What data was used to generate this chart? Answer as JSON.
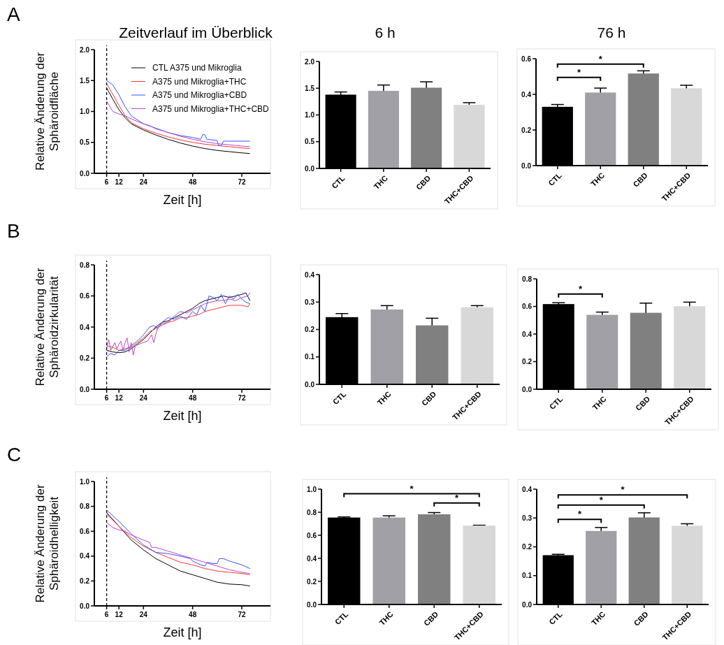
{
  "chart_data": [
    {
      "type": "line",
      "title": "Zeitverlauf im Überblick",
      "ylabel": "Relative Änderung der\nSphäroidfläche",
      "xlabel": "Zeit [h]",
      "annotations": [
        "A"
      ],
      "xlim": [
        0,
        86
      ],
      "xticks": [
        6,
        12,
        24,
        48,
        72
      ],
      "ylim": [
        0,
        2
      ],
      "yticks": [
        {
          "value": 0,
          "label": "0.0"
        },
        {
          "value": 0.5,
          "label": "0.5"
        },
        {
          "value": 1,
          "label": "1.0"
        },
        {
          "value": 1.5,
          "label": "1.5"
        },
        {
          "value": 2,
          "label": "2.0"
        }
      ],
      "ref_lines": [
        {
          "axis": "x",
          "value": 6,
          "line_style": "dashed",
          "color": "#000000"
        }
      ],
      "legend": "top right",
      "series": [
        {
          "name": "CTL A375 und Mikroglia",
          "color": "#000000",
          "x": [
            6,
            9,
            12,
            15,
            18,
            24,
            30,
            36,
            42,
            48,
            54,
            60,
            66,
            72,
            76
          ],
          "values": [
            1.38,
            1.2,
            1.03,
            0.9,
            0.8,
            0.7,
            0.62,
            0.55,
            0.49,
            0.44,
            0.4,
            0.37,
            0.35,
            0.33,
            0.32
          ]
        },
        {
          "name": "A375 und Mikroglia+THC",
          "color": "#ff3333",
          "x": [
            6,
            9,
            12,
            15,
            18,
            24,
            30,
            36,
            42,
            48,
            54,
            60,
            66,
            72,
            76
          ],
          "values": [
            1.45,
            1.28,
            1.1,
            0.93,
            0.82,
            0.72,
            0.65,
            0.59,
            0.54,
            0.5,
            0.47,
            0.45,
            0.43,
            0.41,
            0.4
          ]
        },
        {
          "name": "A375 und Mikroglia+CBD",
          "color": "#3355ff",
          "x": [
            6,
            9,
            12,
            15,
            18,
            24,
            30,
            36,
            42,
            48,
            52,
            53,
            54,
            55,
            60,
            60.6,
            62,
            63,
            66,
            72,
            76
          ],
          "values": [
            1.5,
            1.43,
            1.27,
            1.08,
            0.93,
            0.8,
            0.73,
            0.66,
            0.61,
            0.58,
            0.55,
            0.63,
            0.62,
            0.55,
            0.53,
            0.45,
            0.45,
            0.52,
            0.52,
            0.52,
            0.52
          ]
        },
        {
          "name": "A375 und Mikroglia+THC+CBD",
          "color": "#bb44cc",
          "x": [
            6,
            9,
            12,
            15,
            18,
            24,
            27,
            30,
            36,
            42,
            48,
            54,
            60,
            66,
            72,
            76
          ],
          "values": [
            1.17,
            1.0,
            0.96,
            0.93,
            0.88,
            0.8,
            0.77,
            0.72,
            0.66,
            0.6,
            0.55,
            0.51,
            0.48,
            0.46,
            0.44,
            0.43
          ]
        }
      ]
    },
    {
      "type": "bar",
      "title": "6 h",
      "categories": [
        "CTL",
        "THC",
        "CBD",
        "THC+CBD"
      ],
      "values": [
        1.38,
        1.45,
        1.51,
        1.19
      ],
      "errors": [
        0.05,
        0.11,
        0.11,
        0.04
      ],
      "colors": [
        "#000000",
        "#a0a0a6",
        "#808080",
        "#d8d8d8"
      ],
      "ylim": [
        0,
        2
      ],
      "yticks": [
        {
          "value": 0,
          "label": "0.0"
        },
        {
          "value": 0.5,
          "label": "0.5"
        },
        {
          "value": 1,
          "label": "1.0"
        },
        {
          "value": 1.5,
          "label": "1.5"
        },
        {
          "value": 2,
          "label": "2.0"
        }
      ]
    },
    {
      "type": "bar",
      "title": "76 h",
      "categories": [
        "CTL",
        "THC",
        "CBD",
        "THC+CBD"
      ],
      "values": [
        0.33,
        0.41,
        0.517,
        0.434
      ],
      "errors": [
        0.013,
        0.025,
        0.015,
        0.017
      ],
      "colors": [
        "#000000",
        "#a0a0a6",
        "#808080",
        "#d8d8d8"
      ],
      "ylim": [
        0,
        0.6
      ],
      "yticks": [
        {
          "value": 0,
          "label": "0.0"
        },
        {
          "value": 0.2,
          "label": "0.2"
        },
        {
          "value": 0.4,
          "label": "0.4"
        },
        {
          "value": 0.6,
          "label": "0.6"
        }
      ],
      "annotations": [
        "*",
        "*"
      ]
    },
    {
      "type": "line",
      "ylabel": "Relative Änderung der\nSphäroidzirkularität",
      "xlabel": "Zeit [h]",
      "annotations": [
        "B"
      ],
      "xlim": [
        0,
        86
      ],
      "xticks": [
        6,
        12,
        24,
        48,
        72
      ],
      "ylim": [
        0,
        0.8
      ],
      "yticks": [
        {
          "value": 0,
          "label": "0.0"
        },
        {
          "value": 0.2,
          "label": "0.2"
        },
        {
          "value": 0.4,
          "label": "0.4"
        },
        {
          "value": 0.6,
          "label": "0.6"
        },
        {
          "value": 0.8,
          "label": "0.8"
        }
      ],
      "ref_lines": [
        {
          "axis": "x",
          "value": 6,
          "line_style": "dashed",
          "color": "#000000"
        }
      ],
      "series": [
        {
          "color": "#000000",
          "x": [
            6,
            9,
            12,
            15,
            18,
            21,
            24,
            27,
            30,
            33,
            36,
            39,
            42,
            45,
            48,
            51,
            54,
            57,
            60,
            63,
            66,
            69,
            72,
            74,
            76
          ],
          "values": [
            0.25,
            0.24,
            0.235,
            0.24,
            0.26,
            0.29,
            0.32,
            0.36,
            0.4,
            0.43,
            0.44,
            0.46,
            0.48,
            0.5,
            0.52,
            0.55,
            0.57,
            0.58,
            0.59,
            0.6,
            0.59,
            0.6,
            0.61,
            0.62,
            0.57
          ]
        },
        {
          "color": "#ff3333",
          "x": [
            6,
            9,
            12,
            15,
            18,
            21,
            24,
            27,
            30,
            33,
            36,
            39,
            42,
            45,
            48,
            51,
            54,
            57,
            60,
            63,
            66,
            69,
            72,
            75,
            76
          ],
          "values": [
            0.28,
            0.27,
            0.25,
            0.26,
            0.27,
            0.3,
            0.33,
            0.37,
            0.39,
            0.42,
            0.43,
            0.44,
            0.46,
            0.46,
            0.47,
            0.48,
            0.5,
            0.51,
            0.52,
            0.53,
            0.54,
            0.54,
            0.54,
            0.53,
            0.55
          ]
        },
        {
          "color": "#3355ff",
          "x": [
            6,
            8,
            10,
            12,
            15,
            18,
            21,
            24,
            27,
            29,
            31,
            33,
            36,
            39,
            42,
            45,
            48,
            50,
            52,
            54,
            56,
            58,
            60,
            62,
            64,
            66,
            68,
            70,
            72,
            74,
            76
          ],
          "values": [
            0.21,
            0.23,
            0.22,
            0.25,
            0.25,
            0.28,
            0.31,
            0.35,
            0.4,
            0.41,
            0.39,
            0.43,
            0.46,
            0.45,
            0.47,
            0.45,
            0.5,
            0.48,
            0.54,
            0.5,
            0.6,
            0.59,
            0.57,
            0.61,
            0.55,
            0.6,
            0.58,
            0.61,
            0.58,
            0.56,
            0.55
          ]
        },
        {
          "color": "#bb44cc",
          "x": [
            6,
            7,
            8,
            10,
            11,
            12,
            13,
            14,
            15,
            16,
            17,
            18,
            19,
            20,
            22,
            24,
            26,
            28,
            29,
            31,
            33,
            36,
            39,
            42,
            45,
            48,
            51,
            54,
            57,
            60,
            63,
            66,
            69,
            72,
            75,
            76
          ],
          "values": [
            0.26,
            0.32,
            0.25,
            0.3,
            0.26,
            0.29,
            0.31,
            0.25,
            0.3,
            0.33,
            0.24,
            0.3,
            0.22,
            0.28,
            0.29,
            0.3,
            0.31,
            0.35,
            0.3,
            0.4,
            0.41,
            0.43,
            0.47,
            0.5,
            0.49,
            0.51,
            0.53,
            0.55,
            0.56,
            0.57,
            0.57,
            0.58,
            0.57,
            0.59,
            0.6,
            0.62
          ]
        }
      ]
    },
    {
      "type": "bar",
      "categories": [
        "CTL",
        "THC",
        "CBD",
        "THC+CBD"
      ],
      "values": [
        0.245,
        0.273,
        0.215,
        0.281
      ],
      "errors": [
        0.013,
        0.014,
        0.026,
        0.006
      ],
      "colors": [
        "#000000",
        "#a0a0a6",
        "#808080",
        "#d8d8d8"
      ],
      "ylim": [
        0,
        0.4
      ],
      "yticks": [
        {
          "value": 0,
          "label": "0.0"
        },
        {
          "value": 0.1,
          "label": "0.1"
        },
        {
          "value": 0.2,
          "label": "0.2"
        },
        {
          "value": 0.3,
          "label": "0.3"
        },
        {
          "value": 0.4,
          "label": "0.4"
        }
      ]
    },
    {
      "type": "bar",
      "categories": [
        "CTL",
        "THC",
        "CBD",
        "THC+CBD"
      ],
      "values": [
        0.617,
        0.539,
        0.554,
        0.601
      ],
      "errors": [
        0.01,
        0.02,
        0.07,
        0.03
      ],
      "colors": [
        "#000000",
        "#a0a0a6",
        "#808080",
        "#d8d8d8"
      ],
      "ylim": [
        0,
        0.8
      ],
      "yticks": [
        {
          "value": 0,
          "label": "0.0"
        },
        {
          "value": 0.2,
          "label": "0.2"
        },
        {
          "value": 0.4,
          "label": "0.4"
        },
        {
          "value": 0.6,
          "label": "0.6"
        },
        {
          "value": 0.8,
          "label": "0.8"
        }
      ],
      "annotations": [
        "*"
      ]
    },
    {
      "type": "line",
      "ylabel": "Relative Änderung der\nSphäroidhelligkeit",
      "xlabel": "Zeit [h]",
      "annotations": [
        "C"
      ],
      "xlim": [
        0,
        86
      ],
      "xticks": [
        6,
        12,
        24,
        48,
        72
      ],
      "ylim": [
        0,
        1
      ],
      "yticks": [
        {
          "value": 0,
          "label": "0.0"
        },
        {
          "value": 0.2,
          "label": "0.2"
        },
        {
          "value": 0.4,
          "label": "0.4"
        },
        {
          "value": 0.6,
          "label": "0.6"
        },
        {
          "value": 0.8,
          "label": "0.8"
        },
        {
          "value": 1,
          "label": "1.0"
        }
      ],
      "ref_lines": [
        {
          "axis": "x",
          "value": 6,
          "line_style": "dashed",
          "color": "#000000"
        }
      ],
      "series": [
        {
          "color": "#000000",
          "x": [
            6,
            12,
            18,
            24,
            30,
            36,
            42,
            48,
            54,
            60,
            66,
            72,
            76
          ],
          "values": [
            0.75,
            0.64,
            0.53,
            0.45,
            0.38,
            0.33,
            0.28,
            0.25,
            0.22,
            0.19,
            0.175,
            0.17,
            0.16
          ]
        },
        {
          "color": "#ff3333",
          "x": [
            6,
            12,
            18,
            24,
            30,
            36,
            42,
            48,
            54,
            60,
            66,
            72,
            76
          ],
          "values": [
            0.74,
            0.64,
            0.55,
            0.48,
            0.43,
            0.39,
            0.35,
            0.33,
            0.3,
            0.28,
            0.27,
            0.26,
            0.25
          ]
        },
        {
          "color": "#3355ff",
          "x": [
            6,
            12,
            18,
            24,
            30,
            36,
            42,
            47,
            48,
            52,
            54,
            55,
            58,
            60,
            61,
            63,
            66,
            72,
            76
          ],
          "values": [
            0.77,
            0.68,
            0.58,
            0.49,
            0.43,
            0.42,
            0.4,
            0.38,
            0.36,
            0.33,
            0.32,
            0.35,
            0.34,
            0.34,
            0.38,
            0.38,
            0.36,
            0.33,
            0.3
          ]
        },
        {
          "color": "#bb44cc",
          "x": [
            6,
            9,
            12,
            15,
            18,
            21,
            24,
            27,
            28,
            30,
            36,
            42,
            48,
            54,
            60,
            66,
            72,
            76
          ],
          "values": [
            0.67,
            0.63,
            0.61,
            0.6,
            0.57,
            0.55,
            0.53,
            0.51,
            0.47,
            0.47,
            0.44,
            0.41,
            0.38,
            0.35,
            0.32,
            0.29,
            0.27,
            0.26
          ]
        }
      ]
    },
    {
      "type": "bar",
      "categories": [
        "CTL",
        "THC",
        "CBD",
        "THC+CBD"
      ],
      "values": [
        0.754,
        0.754,
        0.782,
        0.684
      ],
      "errors": [
        0.005,
        0.015,
        0.015,
        0.003
      ],
      "colors": [
        "#000000",
        "#a0a0a6",
        "#808080",
        "#d8d8d8"
      ],
      "ylim": [
        0,
        1
      ],
      "yticks": [
        {
          "value": 0,
          "label": "0.0"
        },
        {
          "value": 0.2,
          "label": "0.2"
        },
        {
          "value": 0.4,
          "label": "0.4"
        },
        {
          "value": 0.6,
          "label": "0.6"
        },
        {
          "value": 0.8,
          "label": "0.8"
        },
        {
          "value": 1,
          "label": "1.0"
        }
      ],
      "annotations": [
        "*",
        "*"
      ]
    },
    {
      "type": "bar",
      "categories": [
        "CTL",
        "THC",
        "CBD",
        "THC+CBD"
      ],
      "values": [
        0.171,
        0.255,
        0.302,
        0.273
      ],
      "errors": [
        0.003,
        0.012,
        0.016,
        0.007
      ],
      "colors": [
        "#000000",
        "#a0a0a6",
        "#808080",
        "#d8d8d8"
      ],
      "ylim": [
        0,
        0.4
      ],
      "yticks": [
        {
          "value": 0,
          "label": "0.0"
        },
        {
          "value": 0.1,
          "label": "0.1"
        },
        {
          "value": 0.2,
          "label": "0.2"
        },
        {
          "value": 0.3,
          "label": "0.3"
        },
        {
          "value": 0.4,
          "label": "0.4"
        }
      ],
      "annotations": [
        "*",
        "*",
        "*"
      ]
    }
  ]
}
